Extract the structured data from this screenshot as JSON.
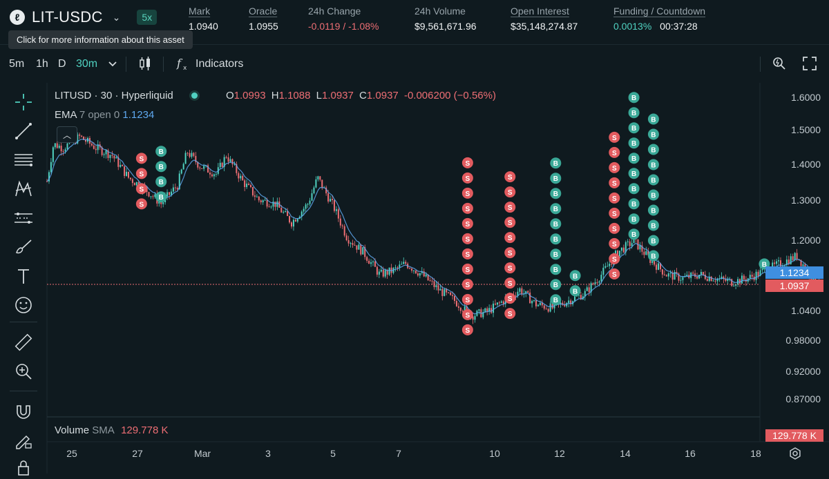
{
  "header": {
    "asset": "LIT-USDC",
    "leverage": "5x",
    "tooltip": "Click for more information about this asset",
    "stats": [
      {
        "label": "Mark",
        "value": "1.0940",
        "underline": true
      },
      {
        "label": "Oracle",
        "value": "1.0955",
        "underline": true
      },
      {
        "label": "24h Change",
        "value": "-0.0119 / -1.08%",
        "underline": false
      },
      {
        "label": "24h Volume",
        "value": "$9,561,671.96",
        "underline": false
      },
      {
        "label": "Open Interest",
        "value": "$35,148,274.87",
        "underline": true
      },
      {
        "label": "Funding / Countdown",
        "value_funding": "0.0013%",
        "value_countdown": "00:37:28",
        "underline": true
      }
    ]
  },
  "toolbar": {
    "timeframes": [
      "5m",
      "1h",
      "D",
      "30m"
    ],
    "active_timeframe": "30m",
    "indicators_label": "Indicators",
    "icons": [
      "chevron-down-icon",
      "candles-icon",
      "function-icon",
      "settings-search-icon",
      "fullscreen-icon"
    ]
  },
  "sidebar": {
    "icons": [
      "crosshair-icon",
      "trend-line-icon",
      "fib-icon",
      "pattern-icon",
      "forecast-icon",
      "brush-icon",
      "text-icon",
      "emoji-icon",
      "ruler-icon",
      "zoom-in-icon",
      "magnet-icon",
      "lock-draw-icon",
      "lock-icon"
    ]
  },
  "legend": {
    "symbol": "LITUSD · 30 · Hyperliquid",
    "o_label": "O",
    "o": "1.0993",
    "h_label": "H",
    "h": "1.1088",
    "l_label": "L",
    "l": "1.0937",
    "c_label": "C",
    "c": "1.0937",
    "change": "-0.006200 (−0.56%)",
    "ema_label": "EMA",
    "ema_params": "7 open 0",
    "ema_value": "1.1234",
    "volume_label": "Volume",
    "volume_sma": "SMA",
    "volume_value": "129.778 K"
  },
  "colors": {
    "up": "#50d2c1",
    "down": "#ed6e74",
    "ema": "#5fa9f0",
    "buy": "#3aa897",
    "sell": "#e25b5f"
  },
  "chart_data": {
    "type": "candlestick",
    "symbol": "LITUSD",
    "interval": "30",
    "y_ticks": [
      "1.6000",
      "1.5000",
      "1.4000",
      "1.3000",
      "1.2000",
      "1.0400",
      "0.98000",
      "0.92000",
      "0.87000"
    ],
    "x_ticks": [
      "25",
      "27",
      "Mar",
      "3",
      "5",
      "7",
      "10",
      "12",
      "14",
      "16",
      "18"
    ],
    "price_path": [
      [
        0.0,
        1.37
      ],
      [
        0.2,
        1.47
      ],
      [
        0.5,
        1.46
      ],
      [
        1.0,
        1.49
      ],
      [
        1.5,
        1.46
      ],
      [
        2.0,
        1.44
      ],
      [
        2.5,
        1.38
      ],
      [
        3.0,
        1.35
      ],
      [
        3.5,
        1.31
      ],
      [
        4.0,
        1.36
      ],
      [
        4.3,
        1.45
      ],
      [
        4.7,
        1.41
      ],
      [
        5.2,
        1.39
      ],
      [
        5.5,
        1.44
      ],
      [
        6.0,
        1.37
      ],
      [
        6.5,
        1.32
      ],
      [
        7.0,
        1.31
      ],
      [
        7.5,
        1.26
      ],
      [
        8.0,
        1.31
      ],
      [
        8.3,
        1.38
      ],
      [
        8.8,
        1.3
      ],
      [
        9.2,
        1.22
      ],
      [
        9.7,
        1.18
      ],
      [
        10.2,
        1.12
      ],
      [
        10.6,
        1.13
      ],
      [
        11.0,
        1.15
      ],
      [
        11.5,
        1.12
      ],
      [
        12.0,
        1.08
      ],
      [
        12.5,
        1.05
      ],
      [
        13.0,
        1.01
      ],
      [
        13.5,
        1.02
      ],
      [
        14.0,
        1.05
      ],
      [
        14.5,
        1.08
      ],
      [
        15.0,
        1.04
      ],
      [
        15.5,
        1.03
      ],
      [
        16.0,
        1.05
      ],
      [
        16.5,
        1.07
      ],
      [
        17.0,
        1.12
      ],
      [
        17.5,
        1.18
      ],
      [
        18.0,
        1.21
      ],
      [
        18.5,
        1.16
      ],
      [
        19.0,
        1.12
      ],
      [
        19.5,
        1.11
      ],
      [
        20.0,
        1.12
      ],
      [
        20.5,
        1.11
      ],
      [
        21.0,
        1.1
      ],
      [
        21.5,
        1.11
      ],
      [
        22.0,
        1.13
      ],
      [
        22.5,
        1.15
      ],
      [
        23.0,
        1.17
      ],
      [
        23.4,
        1.12
      ],
      [
        23.7,
        1.094
      ]
    ],
    "ema_last": 1.1234,
    "last_price": 1.0937,
    "volume_last": "129.778 K",
    "labels": {
      "ema_tag": "1.1234",
      "price_tag": "1.0937",
      "volume_tag": "129.778 K",
      "buy": "B",
      "sell": "S"
    },
    "trade_markers": [
      {
        "x_day": 2.9,
        "side": "S",
        "count": 4
      },
      {
        "x_day": 3.5,
        "side": "B",
        "count": 4
      },
      {
        "x_day": 12.9,
        "side": "S",
        "count": 12
      },
      {
        "x_day": 14.2,
        "side": "S",
        "count": 10
      },
      {
        "x_day": 15.6,
        "side": "B",
        "count": 10
      },
      {
        "x_day": 16.2,
        "side": "B",
        "count": 2
      },
      {
        "x_day": 17.4,
        "side": "S",
        "count": 10
      },
      {
        "x_day": 18.0,
        "side": "B",
        "count": 10
      },
      {
        "x_day": 18.6,
        "side": "B",
        "count": 10
      },
      {
        "x_day": 22.0,
        "side": "B",
        "count": 1
      }
    ]
  }
}
